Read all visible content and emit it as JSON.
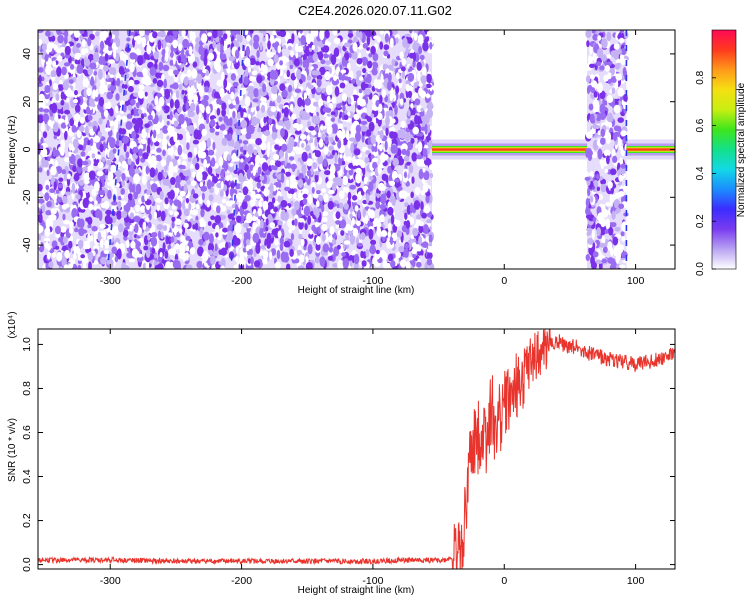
{
  "title": "C2E4.2026.020.07.11.G02",
  "chart_data": [
    {
      "type": "heatmap",
      "xlabel": "Height of straight line (km)",
      "ylabel": "Frequency (Hz)",
      "xlim": [
        -355,
        130
      ],
      "ylim": [
        -50,
        50
      ],
      "xticks": [
        -300,
        -200,
        -100,
        0,
        100
      ],
      "yticks": [
        -40,
        -20,
        0,
        20,
        40
      ],
      "colorbar": {
        "label": "Normalized spectral amplitude",
        "range": [
          0,
          1
        ],
        "ticks": [
          "0.0",
          "0.2",
          "0.4",
          "0.6",
          "0.8"
        ],
        "colors": [
          "#ffffff",
          "#b9a3f2",
          "#7a3cf0",
          "#3b2cff",
          "#1c8cff",
          "#12d9e6",
          "#13e08a",
          "#3ee51c",
          "#c8ee12",
          "#f5e012",
          "#ff9a1a",
          "#ff3a1e",
          "#ff0a55"
        ]
      },
      "regions": [
        {
          "from": -355,
          "to": -55,
          "pattern": "broadband noise",
          "level": 0.25
        },
        {
          "from": -55,
          "to": 63,
          "pattern": "narrow carrier at 0 Hz",
          "level": 0.95
        },
        {
          "from": 63,
          "to": 93,
          "pattern": "broadband noise",
          "level": 0.25
        },
        {
          "from": 93,
          "to": 130,
          "pattern": "narrow carrier at 0 Hz",
          "level": 0.95
        }
      ],
      "streaks": [
        {
          "x_top": -285,
          "x_bottom": -302
        },
        {
          "x_top": -198,
          "x_bottom": -208
        },
        {
          "x_top": 93,
          "x_bottom": 93
        }
      ]
    },
    {
      "type": "line",
      "xlabel": "Height of straight line (km)",
      "ylabel": "SNR (10 * v/v)",
      "yscale_note": "(x10⁴)",
      "xlim": [
        -355,
        130
      ],
      "ylim": [
        -0.02,
        1.07
      ],
      "xticks": [
        -300,
        -200,
        -100,
        0,
        100
      ],
      "yticks": [
        0.0,
        0.2,
        0.4,
        0.6,
        0.8,
        1.0
      ],
      "color": "#e8342c",
      "x": [
        -355,
        -300,
        -250,
        -200,
        -150,
        -100,
        -80,
        -55,
        -45,
        -38,
        -33,
        -30,
        -28,
        -25,
        -22,
        -18,
        -14,
        -10,
        -5,
        0,
        5,
        10,
        15,
        20,
        25,
        30,
        35,
        40,
        45,
        50,
        55,
        60,
        70,
        80,
        90,
        100,
        110,
        120,
        130
      ],
      "y": [
        0.02,
        0.02,
        0.015,
        0.015,
        0.015,
        0.015,
        0.02,
        0.02,
        0.02,
        0.04,
        0.08,
        0.2,
        0.38,
        0.5,
        0.55,
        0.62,
        0.58,
        0.7,
        0.62,
        0.72,
        0.76,
        0.82,
        0.85,
        0.9,
        0.95,
        0.98,
        1.0,
        1.02,
        1.0,
        0.98,
        1.0,
        0.97,
        0.95,
        0.93,
        0.92,
        0.91,
        0.92,
        0.94,
        0.96
      ]
    }
  ]
}
